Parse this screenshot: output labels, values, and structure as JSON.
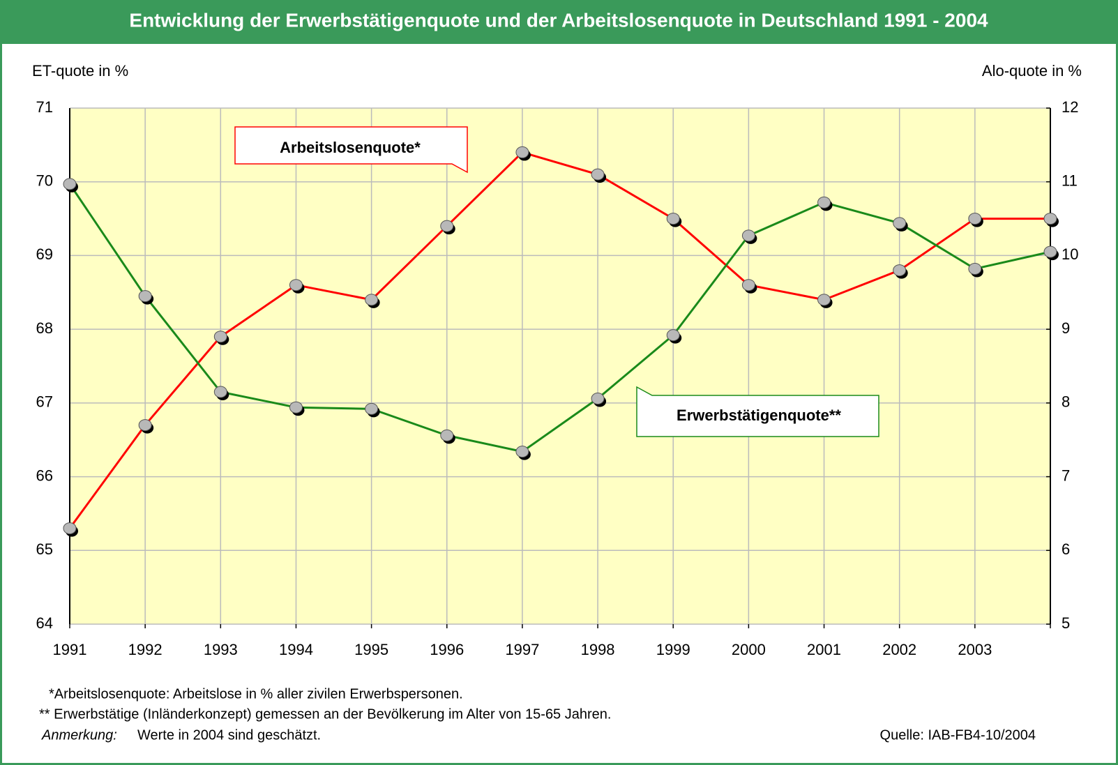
{
  "chart_data": {
    "type": "line",
    "title": "Entwicklung der Erwerbstätigenquote und der Arbeitslosenquote in Deutschland 1991 - 2004",
    "ylabel": "ET-quote in %",
    "y2label": "Alo-quote in %",
    "categories": [
      "1991",
      "1992",
      "1993",
      "1994",
      "1995",
      "1996",
      "1997",
      "1998",
      "1999",
      "2000",
      "2001",
      "2002",
      "2003",
      null
    ],
    "series": [
      {
        "name": "Arbeitslosenquote*",
        "color": "#ff0000",
        "axis": "y2",
        "values": [
          6.3,
          7.7,
          8.9,
          9.6,
          9.4,
          10.4,
          11.4,
          11.1,
          10.5,
          9.6,
          9.4,
          9.8,
          10.5,
          10.5
        ]
      },
      {
        "name": "Erwerbstätigenquote**",
        "color": "#1a8a1a",
        "values": [
          69.97,
          68.45,
          67.15,
          66.94,
          66.92,
          66.56,
          66.34,
          67.06,
          67.92,
          69.27,
          69.72,
          69.44,
          68.82,
          69.05
        ]
      }
    ],
    "ylim": [
      64,
      71
    ],
    "yticks": [
      64,
      65,
      66,
      67,
      68,
      69,
      70,
      71
    ],
    "y2lim": [
      5,
      12
    ],
    "y2ticks": [
      5,
      6,
      7,
      8,
      9,
      10,
      11,
      12
    ],
    "grid": true,
    "notes": [
      "*Arbeitslosenquote: Arbeitslose in % aller zivilen Erwerbspersonen.",
      "** Erwerbstätige (Inländerkonzept) gemessen an der Bevölkerung im Alter von 15-65 Jahren."
    ],
    "remark": {
      "label": "Anmerkung:",
      "text": "Werte in 2004 sind geschätzt."
    },
    "source": "Quelle: IAB-FB4-10/2004"
  }
}
